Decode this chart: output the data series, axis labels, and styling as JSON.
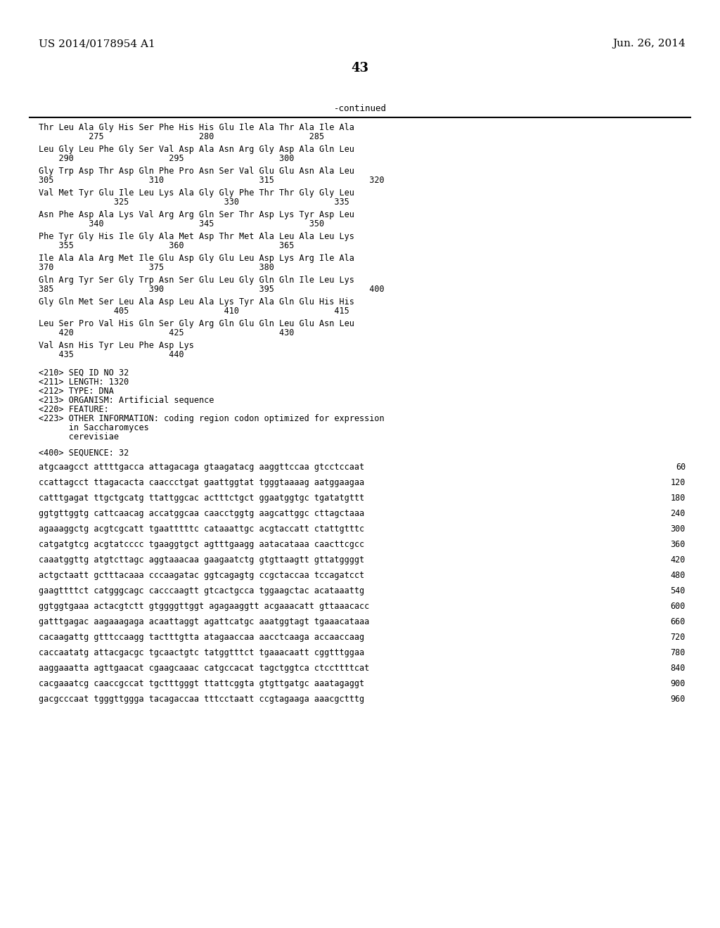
{
  "header_left": "US 2014/0178954 A1",
  "header_right": "Jun. 26, 2014",
  "page_number": "43",
  "continued_label": "-continued",
  "background_color": "#ffffff",
  "text_color": "#000000",
  "protein_lines": [
    {
      "seq": "Thr Leu Ala Gly His Ser Phe His His Glu Ile Ala Thr Ala Ile Ala",
      "nums": "          275                   280                   285"
    },
    {
      "seq": "Leu Gly Leu Phe Gly Ser Val Asp Ala Asn Arg Gly Asp Ala Gln Leu",
      "nums": "    290                   295                   300"
    },
    {
      "seq": "Gly Trp Asp Thr Asp Gln Phe Pro Asn Ser Val Glu Glu Asn Ala Leu",
      "nums": "305                   310                   315                   320"
    },
    {
      "seq": "Val Met Tyr Glu Ile Leu Lys Ala Gly Gly Phe Thr Thr Gly Gly Leu",
      "nums": "               325                   330                   335"
    },
    {
      "seq": "Asn Phe Asp Ala Lys Val Arg Arg Gln Ser Thr Asp Lys Tyr Asp Leu",
      "nums": "          340                   345                   350"
    },
    {
      "seq": "Phe Tyr Gly His Ile Gly Ala Met Asp Thr Met Ala Leu Ala Leu Lys",
      "nums": "    355                   360                   365"
    },
    {
      "seq": "Ile Ala Ala Arg Met Ile Glu Asp Gly Glu Leu Asp Lys Arg Ile Ala",
      "nums": "370                   375                   380"
    },
    {
      "seq": "Gln Arg Tyr Ser Gly Trp Asn Ser Glu Leu Gly Gln Gln Ile Leu Lys",
      "nums": "385                   390                   395                   400"
    },
    {
      "seq": "Gly Gln Met Ser Leu Ala Asp Leu Ala Lys Tyr Ala Gln Glu His His",
      "nums": "               405                   410                   415"
    },
    {
      "seq": "Leu Ser Pro Val His Gln Ser Gly Arg Gln Glu Gln Leu Glu Asn Leu",
      "nums": "    420                   425                   430"
    },
    {
      "seq": "Val Asn His Tyr Leu Phe Asp Lys",
      "nums": "    435                   440"
    }
  ],
  "meta_lines": [
    "<210> SEQ ID NO 32",
    "<211> LENGTH: 1320",
    "<212> TYPE: DNA",
    "<213> ORGANISM: Artificial sequence",
    "<220> FEATURE:",
    "<223> OTHER INFORMATION: coding region codon optimized for expression",
    "      in Saccharomyces",
    "      cerevisiae"
  ],
  "seq_label": "<400> SEQUENCE: 32",
  "dna_lines": [
    {
      "seq": "atgcaagcct attttgacca attagacaga gtaagatacg aaggttccaa gtcctccaat",
      "num": "60"
    },
    {
      "seq": "ccattagcct ttagacacta caaccctgat gaattggtat tgggtaaaag aatggaagaa",
      "num": "120"
    },
    {
      "seq": "catttgagat ttgctgcatg ttattggcac actttctgct ggaatggtgc tgatatgttt",
      "num": "180"
    },
    {
      "seq": "ggtgttggtg cattcaacag accatggcaa caacctggtg aagcattggc cttagctaaa",
      "num": "240"
    },
    {
      "seq": "agaaaggctg acgtcgcatt tgaatttttc cataaattgc acgtaccatt ctattgtttc",
      "num": "300"
    },
    {
      "seq": "catgatgtcg acgtatcccc tgaaggtgct agtttgaagg aatacataaa caacttcgcc",
      "num": "360"
    },
    {
      "seq": "caaatggttg atgtcttagc aggtaaacaa gaagaatctg gtgttaagtt gttatggggt",
      "num": "420"
    },
    {
      "seq": "actgctaatt gctttacaaa cccaagatac ggtcagagtg ccgctaccaa tccagatcct",
      "num": "480"
    },
    {
      "seq": "gaagttttct catgggcagc cacccaagtt gtcactgcca tggaagctac acataaattg",
      "num": "540"
    },
    {
      "seq": "ggtggtgaaa actacgtctt gtggggttggt agagaaggtt acgaaacatt gttaaacacc",
      "num": "600"
    },
    {
      "seq": "gatttgagac aagaaagaga acaattaggt agattcatgc aaatggtagt tgaaacataaa",
      "num": "660"
    },
    {
      "seq": "cacaagattg gtttccaagg tactttgtta atagaaccaa aacctcaaga accaaccaag",
      "num": "720"
    },
    {
      "seq": "caccaatatg attacgacgc tgcaactgtc tatggtttct tgaaacaatt cggtttggaa",
      "num": "780"
    },
    {
      "seq": "aaggaaatta agttgaacat cgaagcaaac catgccacat tagctggtca ctccttttcat",
      "num": "840"
    },
    {
      "seq": "cacgaaatcg caaccgccat tgctttgggt ttattcggta gtgttgatgc aaatagaggt",
      "num": "900"
    },
    {
      "seq": "gacgcccaat tgggttggga tacagaccaa tttcctaatt ccgtagaaga aaacgctttg",
      "num": "960"
    }
  ]
}
